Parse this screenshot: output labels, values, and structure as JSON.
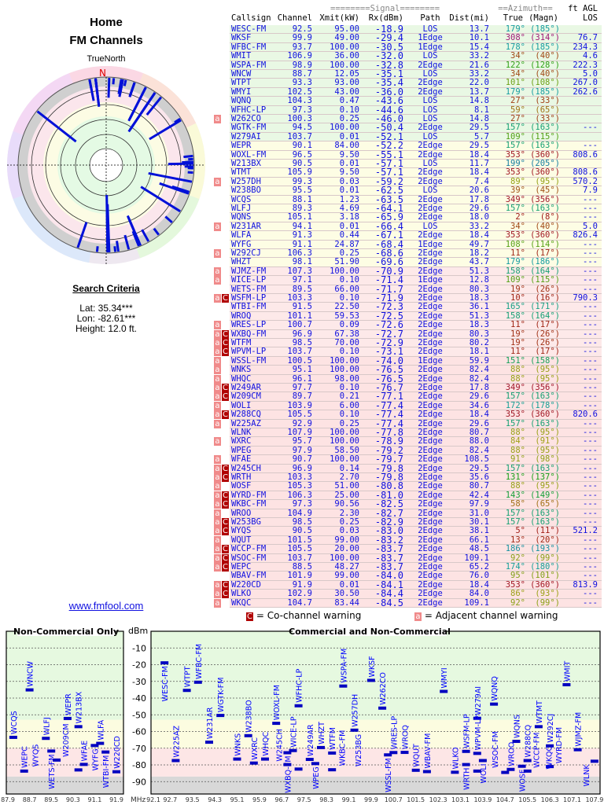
{
  "header": {
    "title": "Home",
    "subtitle": "FM Channels"
  },
  "polar": {
    "north_label": "TrueNorth",
    "n_marker": "N"
  },
  "search_criteria": {
    "heading": "Search Criteria",
    "lat": "Lat: 35.34***",
    "lon": "Lon: -82.61***",
    "height": "Height: 12.0 ft."
  },
  "link": "www.fmfool.com",
  "table": {
    "group_headers": {
      "signal": "========Signal========",
      "azimuth": "==Azimuth==",
      "agl": "ft AGL"
    },
    "columns": [
      "Callsign",
      "Channel",
      "Xmit(kW)",
      "Rx(dBm)",
      "Path",
      "Dist(mi)",
      "True",
      "(Magn)",
      "LOS"
    ],
    "rows": [
      [
        "WESC-FM",
        "92.5",
        "95.00",
        "-18.9",
        "LOS",
        "13.7",
        179,
        185,
        "",
        ""
      ],
      [
        "WKSF",
        "99.9",
        "49.00",
        "-29.4",
        "1Edge",
        "10.1",
        308,
        314,
        "76.7",
        ""
      ],
      [
        "WFBC-FM",
        "93.7",
        "100.00",
        "-30.5",
        "1Edge",
        "15.4",
        178,
        185,
        "234.3",
        ""
      ],
      [
        "WMIT",
        "106.9",
        "36.00",
        "-32.0",
        "LOS",
        "33.2",
        34,
        40,
        "4.6",
        ""
      ],
      [
        "WSPA-FM",
        "98.9",
        "100.00",
        "-32.8",
        "2Edge",
        "21.6",
        122,
        128,
        "222.3",
        ""
      ],
      [
        "WNCW",
        "88.7",
        "12.05",
        "-35.1",
        "LOS",
        "33.2",
        34,
        40,
        "5.0",
        ""
      ],
      [
        "WTPT",
        "93.3",
        "93.00",
        "-35.4",
        "2Edge",
        "22.0",
        101,
        108,
        "267.0",
        ""
      ],
      [
        "WMYI",
        "102.5",
        "43.00",
        "-36.0",
        "2Edge",
        "13.7",
        179,
        185,
        "262.6",
        ""
      ],
      [
        "WQNQ",
        "104.3",
        "0.47",
        "-43.6",
        "LOS",
        "14.8",
        27,
        33,
        "",
        ""
      ],
      [
        "WFHC-LP",
        "97.3",
        "0.10",
        "-44.6",
        "LOS",
        "8.1",
        59,
        65,
        "",
        ""
      ],
      [
        "W262CO",
        "100.3",
        "0.25",
        "-46.0",
        "LOS",
        "14.8",
        27,
        33,
        "",
        "a"
      ],
      [
        "WGTK-FM",
        "94.5",
        "100.00",
        "-50.4",
        "2Edge",
        "29.5",
        157,
        163,
        "---",
        ""
      ],
      [
        "W279AI",
        "103.7",
        "0.01",
        "-52.1",
        "LOS",
        "5.7",
        109,
        115,
        "",
        ""
      ],
      [
        "WEPR",
        "90.1",
        "84.00",
        "-52.2",
        "2Edge",
        "29.5",
        157,
        163,
        "---",
        ""
      ],
      [
        "WOXL-FM",
        "96.5",
        "9.50",
        "-55.1",
        "2Edge",
        "18.4",
        353,
        360,
        "808.6",
        ""
      ],
      [
        "W213BX",
        "90.5",
        "0.01",
        "-57.1",
        "LOS",
        "11.7",
        199,
        205,
        "",
        ""
      ],
      [
        "WTMT",
        "105.9",
        "9.50",
        "-57.1",
        "2Edge",
        "18.4",
        353,
        360,
        "808.6",
        ""
      ],
      [
        "W257DH",
        "99.3",
        "0.03",
        "-59.2",
        "2Edge",
        "7.4",
        89,
        95,
        "570.2",
        "a"
      ],
      [
        "W238BO",
        "95.5",
        "0.01",
        "-62.5",
        "LOS",
        "20.6",
        39,
        45,
        "7.9",
        ""
      ],
      [
        "WCQS",
        "88.1",
        "1.23",
        "-63.5",
        "2Edge",
        "17.8",
        349,
        356,
        "---",
        ""
      ],
      [
        "WLFJ",
        "89.3",
        "4.69",
        "-64.1",
        "2Edge",
        "29.6",
        157,
        163,
        "---",
        ""
      ],
      [
        "WQNS",
        "105.1",
        "3.18",
        "-65.9",
        "2Edge",
        "18.0",
        2,
        8,
        "---",
        ""
      ],
      [
        "W231AR",
        "94.1",
        "0.01",
        "-66.4",
        "LOS",
        "33.2",
        34,
        40,
        "5.0",
        "a"
      ],
      [
        "WLFA",
        "91.3",
        "0.44",
        "-67.1",
        "2Edge",
        "18.4",
        353,
        360,
        "826.4",
        ""
      ],
      [
        "WYFG",
        "91.1",
        "24.87",
        "-68.4",
        "1Edge",
        "49.7",
        108,
        114,
        "---",
        ""
      ],
      [
        "W292CJ",
        "106.3",
        "0.25",
        "-68.6",
        "2Edge",
        "18.2",
        11,
        17,
        "---",
        "a"
      ],
      [
        "WHZT",
        "98.1",
        "51.90",
        "-69.6",
        "2Edge",
        "43.7",
        179,
        186,
        "---",
        ""
      ],
      [
        "WJMZ-FM",
        "107.3",
        "100.00",
        "-70.9",
        "2Edge",
        "51.3",
        158,
        164,
        "---",
        "a"
      ],
      [
        "WICE-LP",
        "97.1",
        "0.10",
        "-71.4",
        "1Edge",
        "12.8",
        109,
        115,
        "---",
        "a"
      ],
      [
        "WETS-FM",
        "89.5",
        "66.00",
        "-71.7",
        "2Edge",
        "80.3",
        19,
        26,
        "---",
        ""
      ],
      [
        "WSFM-LP",
        "103.3",
        "0.10",
        "-71.9",
        "2Edge",
        "18.3",
        10,
        16,
        "790.3",
        "aC"
      ],
      [
        "WTBI-FM",
        "91.5",
        "22.50",
        "-72.3",
        "2Edge",
        "36.1",
        165,
        171,
        "---",
        ""
      ],
      [
        "WROQ",
        "101.1",
        "59.53",
        "-72.5",
        "2Edge",
        "51.3",
        158,
        164,
        "---",
        ""
      ],
      [
        "WRES-LP",
        "100.7",
        "0.09",
        "-72.6",
        "2Edge",
        "18.3",
        11,
        17,
        "---",
        "a"
      ],
      [
        "WXBQ-FM",
        "96.9",
        "67.38",
        "-72.7",
        "2Edge",
        "80.3",
        19,
        26,
        "---",
        "aC"
      ],
      [
        "WTFM",
        "98.5",
        "70.00",
        "-72.9",
        "2Edge",
        "80.2",
        19,
        26,
        "---",
        "aC"
      ],
      [
        "WPVM-LP",
        "103.7",
        "0.10",
        "-73.1",
        "2Edge",
        "18.1",
        11,
        17,
        "---",
        "aC"
      ],
      [
        "WSSL-FM",
        "100.5",
        "100.00",
        "-74.0",
        "1Edge",
        "59.9",
        151,
        158,
        "---",
        "a"
      ],
      [
        "WNKS",
        "95.1",
        "100.00",
        "-76.5",
        "2Edge",
        "82.4",
        88,
        95,
        "---",
        "a"
      ],
      [
        "WHQC",
        "96.1",
        "98.00",
        "-76.5",
        "2Edge",
        "82.4",
        88,
        95,
        "---",
        "a"
      ],
      [
        "W249AR",
        "97.7",
        "0.10",
        "-76.7",
        "2Edge",
        "17.8",
        349,
        356,
        "---",
        "aC"
      ],
      [
        "W209CM",
        "89.7",
        "0.21",
        "-77.1",
        "2Edge",
        "29.6",
        157,
        163,
        "---",
        "aC"
      ],
      [
        "WOLI",
        "103.9",
        "6.00",
        "-77.4",
        "2Edge",
        "34.6",
        172,
        178,
        "---",
        "a"
      ],
      [
        "W288CQ",
        "105.5",
        "0.10",
        "-77.4",
        "2Edge",
        "18.4",
        353,
        360,
        "820.6",
        "aC"
      ],
      [
        "W225AZ",
        "92.9",
        "0.25",
        "-77.4",
        "2Edge",
        "29.6",
        157,
        163,
        "---",
        "a"
      ],
      [
        "WLNK",
        "107.9",
        "100.00",
        "-77.8",
        "2Edge",
        "80.7",
        88,
        95,
        "---",
        ""
      ],
      [
        "WXRC",
        "95.7",
        "100.00",
        "-78.9",
        "2Edge",
        "88.0",
        84,
        91,
        "---",
        "a"
      ],
      [
        "WPEG",
        "97.9",
        "58.50",
        "-79.2",
        "2Edge",
        "82.4",
        88,
        95,
        "---",
        ""
      ],
      [
        "WFAE",
        "90.7",
        "100.00",
        "-79.7",
        "2Edge",
        "108.5",
        91,
        98,
        "---",
        "a"
      ],
      [
        "W245CH",
        "96.9",
        "0.14",
        "-79.8",
        "2Edge",
        "29.5",
        157,
        163,
        "---",
        "aC"
      ],
      [
        "WRTH",
        "103.3",
        "2.70",
        "-79.8",
        "2Edge",
        "35.6",
        131,
        137,
        "---",
        "aC"
      ],
      [
        "WOSF",
        "105.3",
        "51.00",
        "-80.8",
        "2Edge",
        "80.7",
        88,
        95,
        "---",
        "a"
      ],
      [
        "WYRD-FM",
        "106.3",
        "25.00",
        "-81.0",
        "2Edge",
        "42.4",
        143,
        149,
        "---",
        "aC"
      ],
      [
        "WKBC-FM",
        "97.3",
        "90.56",
        "-82.5",
        "2Edge",
        "97.9",
        58,
        65,
        "---",
        "aC"
      ],
      [
        "WROO",
        "104.9",
        "2.30",
        "-82.7",
        "2Edge",
        "31.0",
        157,
        163,
        "---",
        "a"
      ],
      [
        "W253BG",
        "98.5",
        "0.25",
        "-82.9",
        "2Edge",
        "30.1",
        157,
        163,
        "---",
        "aC"
      ],
      [
        "WYQS",
        "90.5",
        "0.03",
        "-83.0",
        "2Edge",
        "38.1",
        5,
        11,
        "521.2",
        "aC"
      ],
      [
        "WQUT",
        "101.5",
        "99.00",
        "-83.2",
        "2Edge",
        "66.1",
        13,
        20,
        "---",
        "a"
      ],
      [
        "WCCP-FM",
        "105.5",
        "20.00",
        "-83.7",
        "2Edge",
        "48.5",
        186,
        193,
        "---",
        "aC"
      ],
      [
        "WSOC-FM",
        "103.7",
        "100.00",
        "-83.7",
        "2Edge",
        "109.1",
        92,
        99,
        "---",
        "aC"
      ],
      [
        "WEPC",
        "88.5",
        "48.27",
        "-83.7",
        "2Edge",
        "65.2",
        174,
        180,
        "---",
        "aC"
      ],
      [
        "WBAV-FM",
        "101.9",
        "99.00",
        "-84.0",
        "2Edge",
        "76.0",
        95,
        101,
        "---",
        ""
      ],
      [
        "W220CD",
        "91.9",
        "0.01",
        "-84.1",
        "2Edge",
        "18.4",
        353,
        360,
        "813.9",
        "aC"
      ],
      [
        "WLKO",
        "102.9",
        "30.50",
        "-84.4",
        "2Edge",
        "84.0",
        86,
        93,
        "---",
        "aC"
      ],
      [
        "WKQC",
        "104.7",
        "83.44",
        "-84.5",
        "2Edge",
        "109.1",
        92,
        99,
        "---",
        "a"
      ]
    ]
  },
  "legend": {
    "co_symbol": "C",
    "co_label": "= Co-channel warning",
    "adj_symbol": "a",
    "adj_label": "= Adjacent channel warning"
  },
  "chart_data": {
    "type": "scatter",
    "panels": [
      {
        "title": "Non-Commercial Only",
        "xlim": [
          87.9,
          91.9
        ],
        "ticks": [
          "87.9",
          "88.7",
          "89.5",
          "90.3",
          "91.1",
          "91.9"
        ],
        "xunit": "MHz"
      },
      {
        "title": "Commercial and Non-Commercial",
        "xlim": [
          92.1,
          107.9
        ],
        "ticks": [
          "92.1",
          "92.7",
          "93.5",
          "94.3",
          "95.1",
          "95.9",
          "96.7",
          "97.5",
          "98.3",
          "99.1",
          "99.9",
          "100.7",
          "101.5",
          "102.3",
          "103.1",
          "103.9",
          "104.7",
          "105.5",
          "106.3",
          "107.1",
          "107.9"
        ]
      }
    ],
    "ylabel": "dBm",
    "yticks": [
      -10,
      -20,
      -30,
      -40,
      -50,
      -60,
      -70,
      -80,
      -90
    ],
    "ylim": [
      0,
      -97
    ],
    "grid": true,
    "points": "table.rows (Channel vs Rx(dBm), labeled by Callsign)",
    "colors": {
      "bar": "#0000c0",
      "label": "#0000ff",
      "green_zone": "#e6f9e0",
      "yellow_zone": "#fcfce0",
      "pink_zone": "#fde6e6",
      "grey_zone": "#d8d8d8"
    }
  },
  "colors": {
    "text_blue": "#1010e0",
    "co_channel": "#b00000",
    "adjacent": "#f08a8a",
    "row_green": "#e9f8e4",
    "row_yellow": "#fdfde4",
    "row_pink": "#fde9e9"
  }
}
